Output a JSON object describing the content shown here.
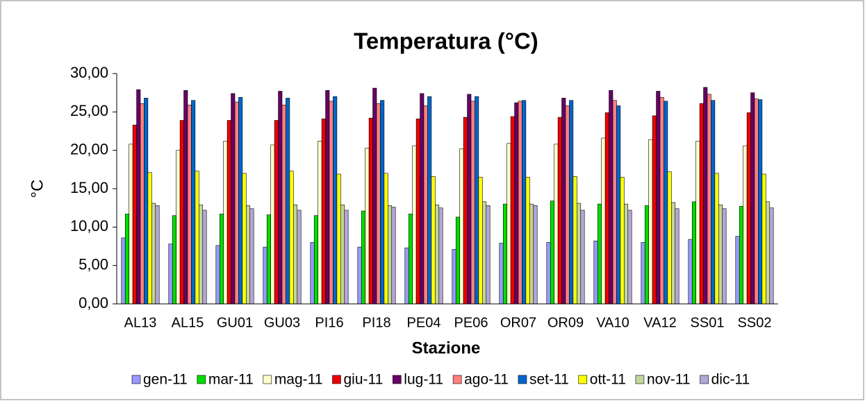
{
  "chart_data": {
    "type": "bar",
    "title": "Temperatura (°C)",
    "x_label": "Stazione",
    "y_label": "°C",
    "categories": [
      "AL13",
      "AL15",
      "GU01",
      "GU03",
      "PI16",
      "PI18",
      "PE04",
      "PE06",
      "OR07",
      "OR09",
      "VA10",
      "VA12",
      "SS01",
      "SS02"
    ],
    "series": [
      {
        "name": "gen-11",
        "color": "#9999ff",
        "values": [
          8.6,
          7.8,
          7.6,
          7.4,
          8.0,
          7.4,
          7.3,
          7.1,
          7.9,
          8.0,
          8.2,
          8.0,
          8.4,
          8.8
        ]
      },
      {
        "name": "mar-11",
        "color": "#00dd00",
        "values": [
          11.7,
          11.5,
          11.7,
          11.6,
          11.5,
          12.1,
          11.7,
          11.3,
          13.0,
          13.4,
          13.0,
          12.8,
          13.3,
          12.7
        ]
      },
      {
        "name": "mag-11",
        "color": "#ffffcc",
        "values": [
          20.8,
          20.0,
          21.2,
          20.7,
          21.2,
          20.3,
          20.6,
          20.2,
          20.9,
          20.8,
          21.6,
          21.4,
          21.2,
          20.6
        ]
      },
      {
        "name": "giu-11",
        "color": "#ee0000",
        "values": [
          23.3,
          23.9,
          23.9,
          23.9,
          24.1,
          24.2,
          24.1,
          24.3,
          24.4,
          24.3,
          24.9,
          24.5,
          26.1,
          24.9
        ]
      },
      {
        "name": "lug-11",
        "color": "#660066",
        "values": [
          27.9,
          27.8,
          27.4,
          27.7,
          27.8,
          28.1,
          27.4,
          27.3,
          26.2,
          26.8,
          27.8,
          27.7,
          28.2,
          27.5
        ]
      },
      {
        "name": "ago-11",
        "color": "#ff8080",
        "values": [
          26.1,
          25.9,
          26.3,
          25.9,
          26.4,
          26.1,
          25.8,
          26.4,
          26.4,
          25.8,
          26.5,
          26.9,
          27.3,
          26.7
        ]
      },
      {
        "name": "set-11",
        "color": "#0066cc",
        "values": [
          26.8,
          26.5,
          26.9,
          26.8,
          27.0,
          26.5,
          27.0,
          27.0,
          26.5,
          26.5,
          25.8,
          26.4,
          26.5,
          26.6
        ]
      },
      {
        "name": "ott-11",
        "color": "#ffff00",
        "values": [
          17.1,
          17.3,
          17.0,
          17.3,
          16.9,
          17.0,
          16.6,
          16.5,
          16.5,
          16.6,
          16.5,
          17.2,
          17.0,
          16.9
        ]
      },
      {
        "name": "nov-11",
        "color": "#c4d79b",
        "values": [
          13.1,
          12.9,
          12.8,
          12.9,
          12.9,
          12.8,
          12.9,
          13.3,
          13.0,
          13.1,
          13.0,
          13.2,
          12.9,
          13.3
        ]
      },
      {
        "name": "dic-11",
        "color": "#b4a7d6",
        "values": [
          12.8,
          12.2,
          12.4,
          12.2,
          12.2,
          12.6,
          12.5,
          12.8,
          12.8,
          12.2,
          12.2,
          12.4,
          12.4,
          12.5
        ]
      }
    ],
    "ylim": [
      0,
      30
    ],
    "yticks": [
      {
        "value": 0,
        "label": "0,00"
      },
      {
        "value": 5,
        "label": "5,00"
      },
      {
        "value": 10,
        "label": "10,00"
      },
      {
        "value": 15,
        "label": "15,00"
      },
      {
        "value": 20,
        "label": "20,00"
      },
      {
        "value": 25,
        "label": "25,00"
      },
      {
        "value": 30,
        "label": "30,00"
      }
    ],
    "grid": false,
    "legend": "bottom"
  }
}
